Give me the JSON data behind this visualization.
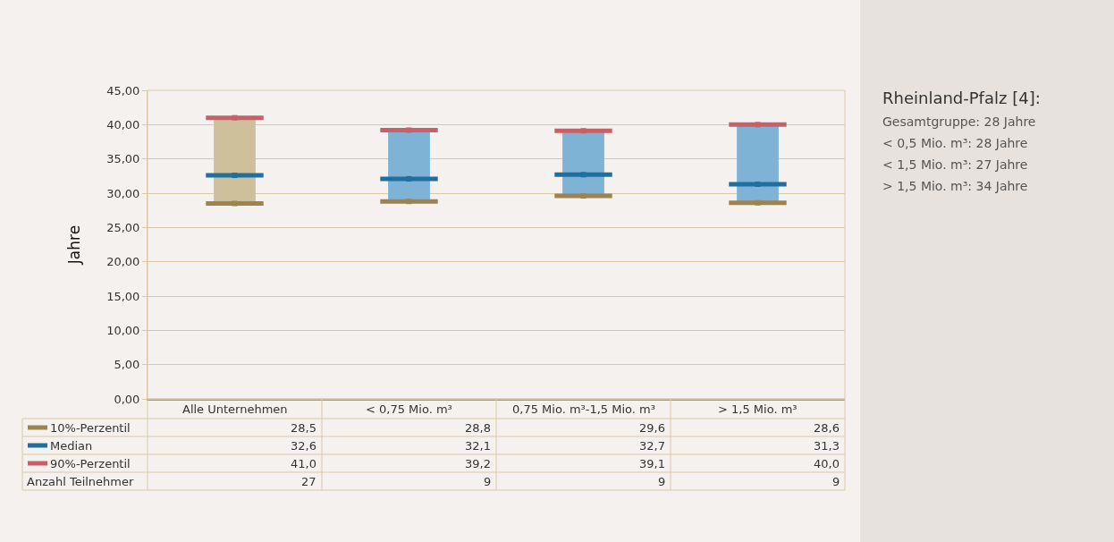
{
  "chart_data": {
    "type": "scatter",
    "title": "Rheinland-Pfalz [4]:",
    "ylabel": "Jahre",
    "categories": [
      "Alle Unternehmen",
      "< 0,75 Mio. m³",
      "0,75 Mio. m³-1,5 Mio. m³",
      "> 1,5 Mio. m³"
    ],
    "series": [
      {
        "type": "bar",
        "colors": [
          "#cfc09c",
          "#7fb3d5",
          "#7fb3d5",
          "#7fb3d5"
        ],
        "base": [
          28.5,
          28.8,
          29.6,
          28.6
        ],
        "values": [
          12.5,
          10.4,
          9.5,
          11.4
        ]
      },
      {
        "name": "10%-Perzentil",
        "color": "#9c8350",
        "values": [
          28.5,
          28.8,
          29.6,
          28.6
        ],
        "value_labels": [
          "28,5",
          "28,8",
          "29,6",
          "28,6"
        ]
      },
      {
        "name": "Median",
        "color": "#1f6f9f",
        "values": [
          32.6,
          32.1,
          32.7,
          31.3
        ],
        "value_labels": [
          "32,6",
          "32,1",
          "32,7",
          "31,3"
        ]
      },
      {
        "name": "90%-Perzentil",
        "color": "#c8606a",
        "values": [
          41.0,
          39.2,
          39.1,
          40.0
        ],
        "value_labels": [
          "41,0",
          "39,2",
          "39,1",
          "40,0"
        ]
      }
    ],
    "ylim": [
      0,
      45
    ],
    "yticks": [
      {
        "value": 0,
        "label": "0,00"
      },
      {
        "value": 5,
        "label": "5,00"
      },
      {
        "value": 10,
        "label": "10,00"
      },
      {
        "value": 15,
        "label": "15,00"
      },
      {
        "value": 20,
        "label": "20,00"
      },
      {
        "value": 25,
        "label": "25,00"
      },
      {
        "value": 30,
        "label": "30,00"
      },
      {
        "value": 35,
        "label": "35,00"
      },
      {
        "value": 40,
        "label": "40,00"
      },
      {
        "value": 45,
        "label": "45,00"
      }
    ],
    "grid": "y",
    "legend": "bottom",
    "annotations": [
      "Gesamtgruppe: 28 Jahre",
      "< 0,5 Mio. m³: 28 Jahre",
      "< 1,5 Mio. m³: 27 Jahre",
      "> 1,5 Mio. m³: 34 Jahre",
      "Anzahl Teilnehmer",
      "27",
      "9",
      "9",
      "9"
    ]
  }
}
